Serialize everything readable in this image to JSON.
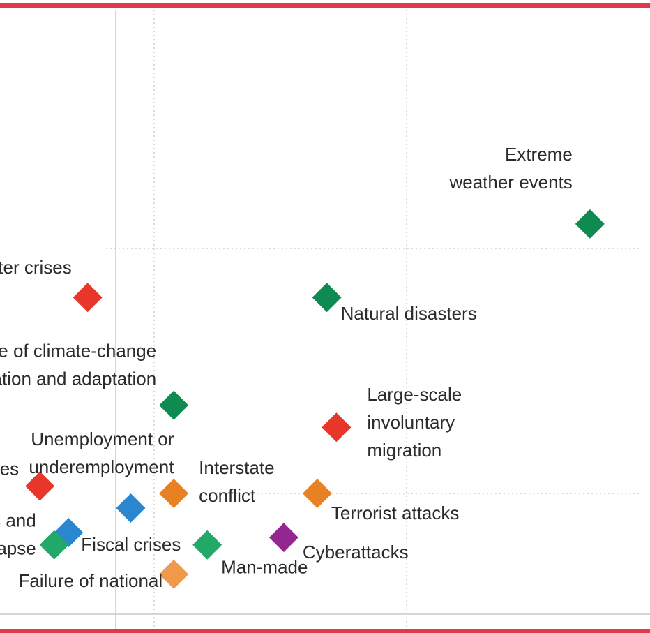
{
  "chart_data": {
    "type": "scatter",
    "title": "",
    "xlabel": "",
    "ylabel": "",
    "grid": true,
    "colors": {
      "environmental": "#0f8a50",
      "environmental_light": "#22a868",
      "societal": "#e8372a",
      "geopolitical": "#e88024",
      "geopolitical_light": "#f0994a",
      "economic": "#2a86cf",
      "technological": "#93278f",
      "frame": "#e0394c"
    },
    "points": [
      {
        "label": [
          "Extreme",
          "weather events"
        ],
        "x": 4.94,
        "y": 4.1,
        "color": "#0f8a50"
      },
      {
        "label": [
          "Natural disasters"
        ],
        "x": 4.39,
        "y": 3.8,
        "color": "#0f8a50"
      },
      {
        "label": [
          "Water crises"
        ],
        "x": 3.89,
        "y": 3.8,
        "color": "#e8372a"
      },
      {
        "label": [
          "Failure of climate-change",
          "mitigation and adaptation"
        ],
        "x": 4.07,
        "y": 3.36,
        "color": "#0f8a50"
      },
      {
        "label": [
          "Large-scale",
          "involuntary",
          "migration"
        ],
        "x": 4.41,
        "y": 3.27,
        "color": "#e8372a"
      },
      {
        "label": [
          "ses"
        ],
        "x": 3.79,
        "y": 3.03,
        "color": "#e8372a"
      },
      {
        "label": [
          "Unemployment or",
          "underemployment"
        ],
        "x": 3.98,
        "y": 2.94,
        "color": "#2a86cf"
      },
      {
        "label": [
          "Interstate",
          "conflict"
        ],
        "x": 4.07,
        "y": 3.0,
        "color": "#e88024"
      },
      {
        "label": [
          "Terrorist attacks"
        ],
        "x": 4.37,
        "y": 3.0,
        "color": "#e88024"
      },
      {
        "label": [
          "Fiscal crises"
        ],
        "x": 3.85,
        "y": 2.84,
        "color": "#2a86cf"
      },
      {
        "label": [
          "ss and",
          "llapse"
        ],
        "x": 3.82,
        "y": 2.79,
        "color": "#22a868"
      },
      {
        "label": [
          "Cyberattacks"
        ],
        "x": 4.3,
        "y": 2.82,
        "color": "#93278f"
      },
      {
        "label": [
          "Man-made"
        ],
        "x": 4.14,
        "y": 2.79,
        "color": "#22a868"
      },
      {
        "label": [
          "Failure of national"
        ],
        "x": 4.07,
        "y": 2.67,
        "color": "#f0994a"
      }
    ]
  }
}
